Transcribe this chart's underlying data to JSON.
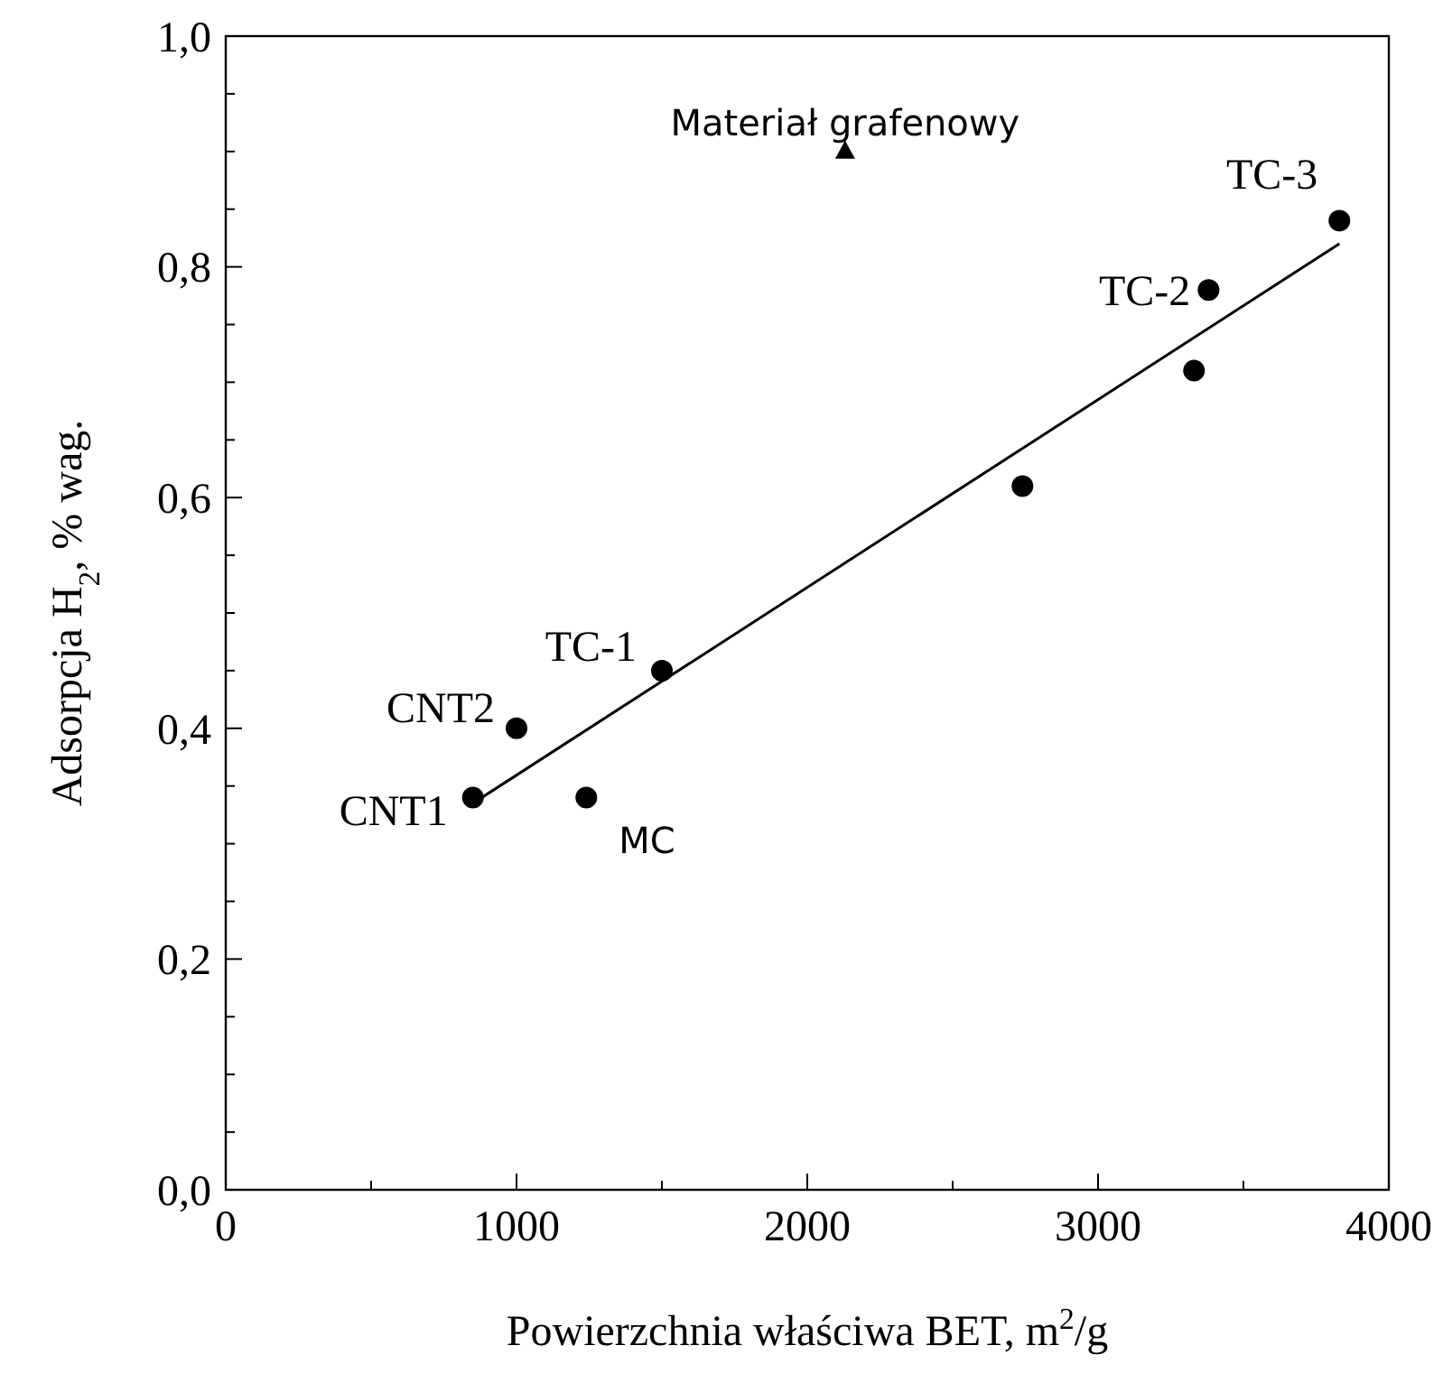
{
  "chart_data": {
    "type": "scatter",
    "xlabel": "Powierzchnia właściwa BET, m$^{2}$/g",
    "ylabel": "Adsorpcja H$_{2}$, % wag.",
    "xlim": [
      0,
      4000
    ],
    "xticks": [
      0,
      {
        "value": 500,
        "label": null
      },
      1000,
      {
        "value": 1500,
        "label": null
      },
      2000,
      {
        "value": 2500,
        "label": null
      },
      3000,
      {
        "value": 3500,
        "label": null
      },
      4000
    ],
    "ylim": [
      0,
      1
    ],
    "yticks": [
      {
        "value": 0,
        "label": "0,0"
      },
      {
        "value": 0.05,
        "label": null
      },
      {
        "value": 0.1,
        "label": null
      },
      {
        "value": 0.15,
        "label": null
      },
      {
        "value": 0.2,
        "label": "0,2"
      },
      {
        "value": 0.25,
        "label": null
      },
      {
        "value": 0.3,
        "label": null
      },
      {
        "value": 0.35,
        "label": null
      },
      {
        "value": 0.4,
        "label": "0,4"
      },
      {
        "value": 0.45,
        "label": null
      },
      {
        "value": 0.5,
        "label": null
      },
      {
        "value": 0.55,
        "label": null
      },
      {
        "value": 0.6,
        "label": "0,6"
      },
      {
        "value": 0.65,
        "label": null
      },
      {
        "value": 0.7,
        "label": null
      },
      {
        "value": 0.75,
        "label": null
      },
      {
        "value": 0.8,
        "label": "0,8"
      },
      {
        "value": 0.85,
        "label": null
      },
      {
        "value": 0.9,
        "label": null
      },
      {
        "value": 0.95,
        "label": null
      },
      {
        "value": 1,
        "label": "1,0"
      }
    ],
    "grid": false,
    "series": [
      {
        "marker": "circle",
        "color": "#000000",
        "x": [
          850,
          1000,
          1240,
          1500,
          2740,
          3330,
          3380,
          3830
        ],
        "values": [
          0.34,
          0.4,
          0.34,
          0.45,
          0.61,
          0.71,
          0.78,
          0.84
        ]
      },
      {
        "marker": "triangle",
        "color": "#000000",
        "x": [
          2130
        ],
        "values": [
          0.9
        ]
      },
      {
        "type": "line",
        "marker": "none",
        "line_style": "solid",
        "color": "#000000",
        "x": [
          850,
          3830
        ],
        "values": [
          0.335,
          0.82
        ]
      }
    ],
    "annotations": [
      {
        "text": "CNT1",
        "x": 850,
        "y": 0.34
      },
      {
        "text": "CNT2",
        "x": 1000,
        "y": 0.4
      },
      {
        "text": "MC",
        "x": 1240,
        "y": 0.34
      },
      {
        "text": "TC-1",
        "x": 1500,
        "y": 0.45
      },
      {
        "text": "TC-2",
        "x": 3380,
        "y": 0.78
      },
      {
        "text": "TC-3",
        "x": 3830,
        "y": 0.84
      },
      {
        "text": "Materiał grafenowy",
        "x": 2130,
        "y": 0.9
      }
    ]
  }
}
